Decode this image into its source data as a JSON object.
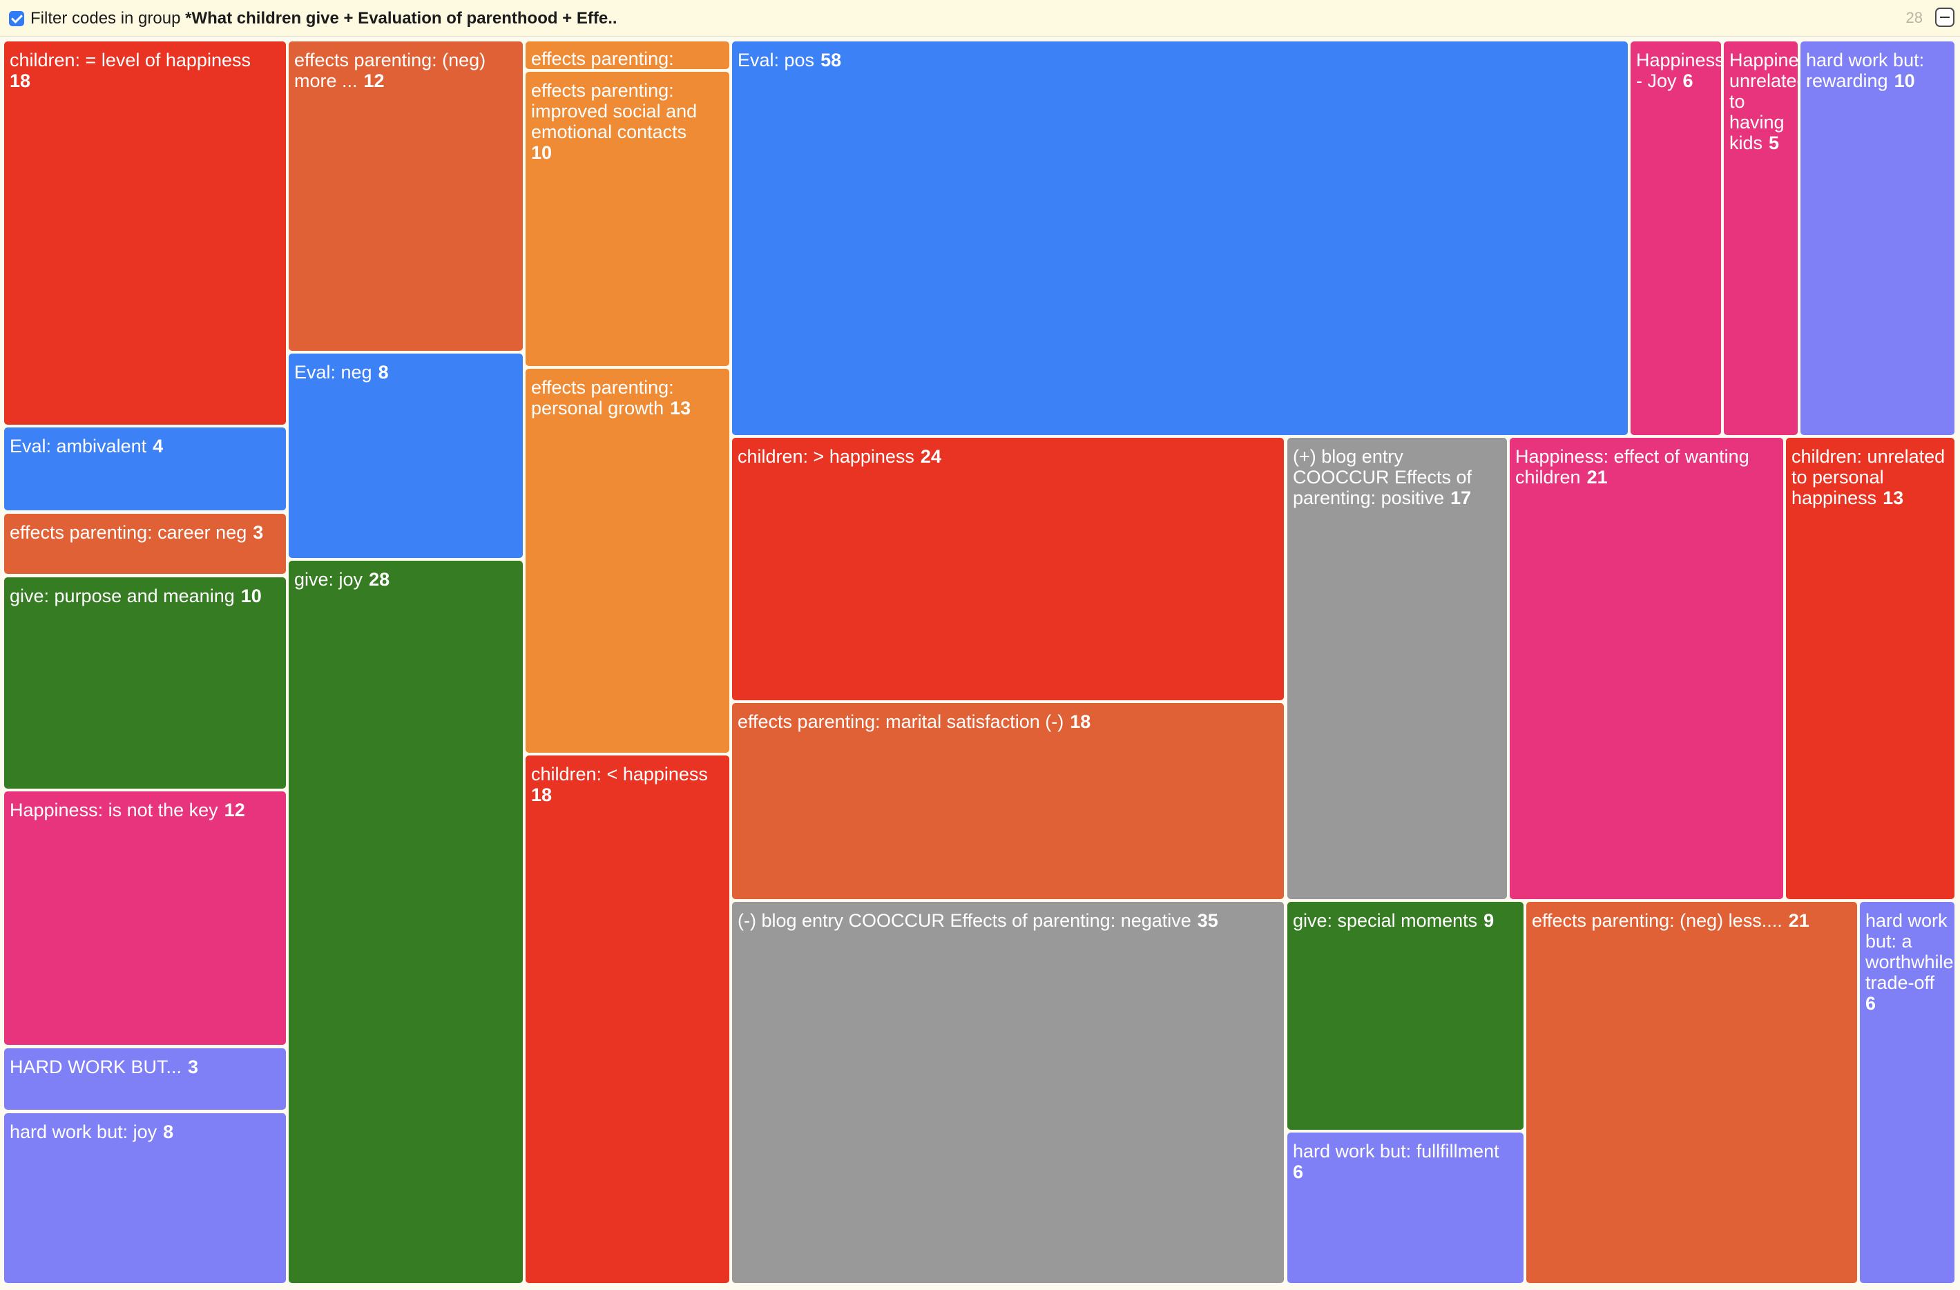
{
  "header": {
    "filter_prefix": "Filter codes in group",
    "filter_group": "*What children give + Evaluation of parenthood + Effe..",
    "filter_checked": true,
    "code_count": "28"
  },
  "colors": {
    "red": "#e93323",
    "orange": "#e06135",
    "light_orange": "#ef8a35",
    "blue": "#3c81f6",
    "green": "#367c23",
    "pink": "#e8337d",
    "purple": "#8080f6",
    "gray": "#999999"
  },
  "treemap": {
    "tiles": [
      {
        "label": "children: = level of happiness",
        "count": "18",
        "color": "red"
      },
      {
        "label": "Eval: ambivalent",
        "count": "4",
        "color": "blue"
      },
      {
        "label": "effects parenting: career neg",
        "count": "3",
        "color": "orange"
      },
      {
        "label": "give: purpose and meaning",
        "count": "10",
        "color": "green"
      },
      {
        "label": "Happiness: is not the key",
        "count": "12",
        "color": "pink"
      },
      {
        "label": "HARD WORK BUT...",
        "count": "3",
        "color": "purple"
      },
      {
        "label": "hard work but: joy",
        "count": "8",
        "color": "purple"
      },
      {
        "label": "effects parenting: (neg) more ...",
        "count": "12",
        "color": "orange"
      },
      {
        "label": "Eval: neg",
        "count": "8",
        "color": "blue"
      },
      {
        "label": "give: joy",
        "count": "28",
        "color": "green"
      },
      {
        "label": "effects parenting:",
        "count": "",
        "color": "light_orange"
      },
      {
        "label": "effects parenting: improved social and emotional contacts",
        "count": "10",
        "color": "light_orange"
      },
      {
        "label": "effects parenting: personal growth",
        "count": "13",
        "color": "light_orange"
      },
      {
        "label": "children: < happiness",
        "count": "18",
        "color": "red"
      },
      {
        "label": "Eval: pos",
        "count": "58",
        "color": "blue"
      },
      {
        "label": "Happiness - Joy",
        "count": "6",
        "color": "pink"
      },
      {
        "label": "Happiness: unrelated to having kids",
        "count": "5",
        "color": "pink"
      },
      {
        "label": "hard work but: rewarding",
        "count": "10",
        "color": "purple"
      },
      {
        "label": "children: > happiness",
        "count": "24",
        "color": "red"
      },
      {
        "label": "effects parenting: marital satisfaction (-)",
        "count": "18",
        "color": "orange"
      },
      {
        "label": "(-) blog entry COOCCUR Effects of parenting: negative",
        "count": "35",
        "color": "gray"
      },
      {
        "label": "(+) blog entry COOCCUR Effects of parenting: positive",
        "count": "17",
        "color": "gray"
      },
      {
        "label": "Happiness: effect of wanting children",
        "count": "21",
        "color": "pink"
      },
      {
        "label": "children: unrelated to personal happiness",
        "count": "13",
        "color": "red"
      },
      {
        "label": "give: special moments",
        "count": "9",
        "color": "green"
      },
      {
        "label": "hard work but: fullfillment",
        "count": "6",
        "color": "purple"
      },
      {
        "label": "effects parenting: (neg) less....",
        "count": "21",
        "color": "orange"
      },
      {
        "label": "hard work but: a worthwhile trade-off",
        "count": "6",
        "color": "purple"
      }
    ]
  }
}
